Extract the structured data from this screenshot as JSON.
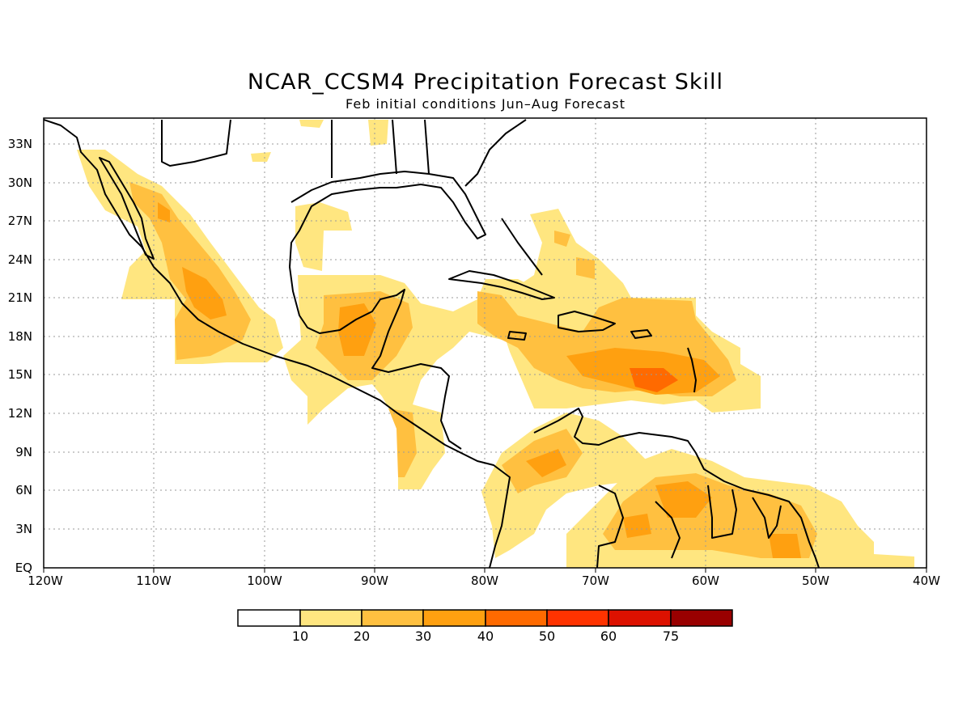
{
  "title": "NCAR_CCSM4 Precipitation Forecast Skill",
  "subtitle": "Feb initial conditions  Jun–Aug Forecast",
  "map": {
    "lon_range": [
      -120,
      -40
    ],
    "lat_range": [
      0,
      35
    ],
    "grid": true,
    "lat_ticks": [
      "33N",
      "30N",
      "27N",
      "24N",
      "21N",
      "18N",
      "15N",
      "12N",
      "9N",
      "6N",
      "3N",
      "EQ"
    ],
    "lon_ticks": [
      "120W",
      "110W",
      "100W",
      "90W",
      "80W",
      "70W",
      "60W",
      "50W",
      "40W"
    ]
  },
  "colorbar": {
    "labels": [
      "10",
      "20",
      "30",
      "40",
      "50",
      "60",
      "75"
    ],
    "colors": [
      "#ffffff",
      "#ffe680",
      "#ffc040",
      "#ffa010",
      "#ff6a00",
      "#ff3300",
      "#dd1100",
      "#990000"
    ]
  }
}
